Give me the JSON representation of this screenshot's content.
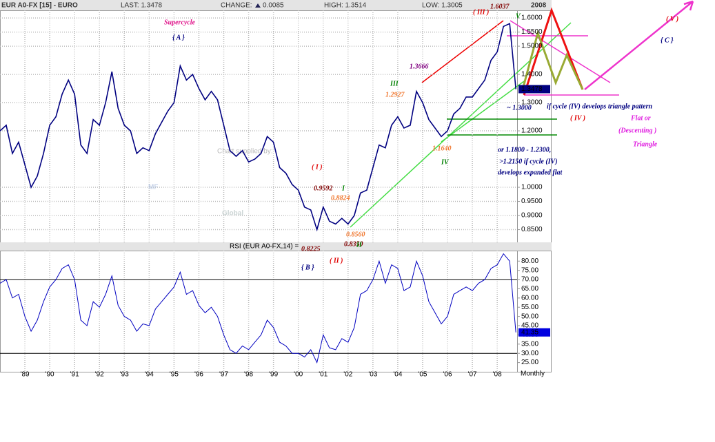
{
  "header": {
    "symbol": "EUR A0-FX [15] - EURO",
    "last": "LAST: 1.3478",
    "change_label": "CHANGE:",
    "change": "0.0085",
    "high": "HIGH: 1.3514",
    "low": "LOW: 1.3005",
    "date": "2008"
  },
  "footer": {
    "period": "Monthly"
  },
  "watermark": {
    "credit": "Chart supplied by:",
    "logo1": "MF",
    "logo2": "Global"
  },
  "chart_data": [
    {
      "type": "line",
      "color": "#000080",
      "grid": true,
      "xlim": [
        1988,
        2008.8
      ],
      "ylim": [
        0.805,
        1.627
      ],
      "x": [
        1988,
        1988.25,
        1988.5,
        1988.75,
        1989,
        1989.25,
        1989.5,
        1989.75,
        1990,
        1990.25,
        1990.5,
        1990.75,
        1991,
        1991.25,
        1991.5,
        1991.75,
        1992,
        1992.25,
        1992.5,
        1992.75,
        1993,
        1993.25,
        1993.5,
        1993.75,
        1994,
        1994.25,
        1994.5,
        1994.75,
        1995,
        1995.25,
        1995.5,
        1995.75,
        1996,
        1996.25,
        1996.5,
        1996.75,
        1997,
        1997.25,
        1997.5,
        1997.75,
        1998,
        1998.25,
        1998.5,
        1998.75,
        1999,
        1999.25,
        1999.5,
        1999.75,
        2000,
        2000.25,
        2000.5,
        2000.75,
        2001,
        2001.25,
        2001.5,
        2001.75,
        2002,
        2002.25,
        2002.5,
        2002.75,
        2003,
        2003.25,
        2003.5,
        2003.75,
        2004,
        2004.25,
        2004.5,
        2004.75,
        2005,
        2005.25,
        2005.5,
        2005.75,
        2006,
        2006.25,
        2006.5,
        2006.75,
        2007,
        2007.25,
        2007.5,
        2007.75,
        2008,
        2008.25,
        2008.5,
        2008.75
      ],
      "values": [
        1.2,
        1.22,
        1.12,
        1.16,
        1.08,
        1.0,
        1.04,
        1.12,
        1.22,
        1.25,
        1.33,
        1.38,
        1.33,
        1.15,
        1.12,
        1.24,
        1.22,
        1.3,
        1.41,
        1.28,
        1.22,
        1.2,
        1.12,
        1.14,
        1.13,
        1.19,
        1.23,
        1.27,
        1.3,
        1.43,
        1.38,
        1.4,
        1.35,
        1.31,
        1.34,
        1.31,
        1.22,
        1.13,
        1.11,
        1.13,
        1.09,
        1.1,
        1.12,
        1.18,
        1.16,
        1.07,
        1.05,
        1.01,
        0.99,
        0.93,
        0.92,
        0.85,
        0.93,
        0.88,
        0.87,
        0.89,
        0.87,
        0.9,
        0.98,
        0.99,
        1.07,
        1.15,
        1.14,
        1.22,
        1.25,
        1.21,
        1.22,
        1.34,
        1.3,
        1.24,
        1.21,
        1.18,
        1.2,
        1.26,
        1.28,
        1.32,
        1.32,
        1.35,
        1.38,
        1.45,
        1.48,
        1.57,
        1.58,
        1.3478
      ],
      "yticks": [
        {
          "value": 1.6,
          "label": "1.6000"
        },
        {
          "value": 1.55,
          "label": "1.5500"
        },
        {
          "value": 1.5,
          "label": "1.5000"
        },
        {
          "value": 1.4,
          "label": "1.4000"
        },
        {
          "value": 1.3,
          "label": "1.3000"
        },
        {
          "value": 1.2,
          "label": "1.2000"
        },
        {
          "value": 1.0,
          "label": "1.0000"
        },
        {
          "value": 0.95,
          "label": "0.9500"
        },
        {
          "value": 0.9,
          "label": "0.9000"
        },
        {
          "value": 0.85,
          "label": "0.8500"
        }
      ],
      "annotations": [
        {
          "text": "( III )",
          "color": "#e00000"
        },
        {
          "text": "1.6037",
          "color": "#800000"
        },
        {
          "text": "V",
          "color": "#008000"
        },
        {
          "text": "Supercycle",
          "color": "#e0138a"
        },
        {
          "text": "{ A }",
          "color": "#000080"
        },
        {
          "text": "1.3666",
          "color": "#800080"
        },
        {
          "text": "III",
          "color": "#008000"
        },
        {
          "text": "1.2927",
          "color": "#f07830"
        },
        {
          "text": "( I )",
          "color": "#e00000"
        },
        {
          "text": "0.9592",
          "color": "#800000"
        },
        {
          "text": "I",
          "color": "#008000"
        },
        {
          "text": "0.8824",
          "color": "#f07830"
        },
        {
          "text": "0.8560",
          "color": "#f07830"
        },
        {
          "text": "0.8350",
          "color": "#800000"
        },
        {
          "text": "0.8225",
          "color": "#800000"
        },
        {
          "text": "II",
          "color": "#008000"
        },
        {
          "text": "( II )",
          "color": "#e00000"
        },
        {
          "text": "{ B }",
          "color": "#000080"
        },
        {
          "text": "1.1640",
          "color": "#f07830"
        },
        {
          "text": "IV",
          "color": "#008000"
        },
        {
          "text": "~ 1.3000",
          "color": "#000080"
        },
        {
          "text": "if cycle (IV) develops triangle pattern",
          "color": "#000080"
        },
        {
          "text": "( IV )",
          "color": "#e00000"
        },
        {
          "text": "Flat or",
          "color": "#e020e0"
        },
        {
          "text": "(Descenting )",
          "color": "#e020e0"
        },
        {
          "text": "Triangle",
          "color": "#e020e0"
        },
        {
          "text": "or  1.1800 - 1.2300,",
          "color": "#000080"
        },
        {
          "text": ">1.2150  if cycle (IV)",
          "color": "#000080"
        },
        {
          "text": "develops expanded flat",
          "color": "#000080"
        },
        {
          "text": "( V )",
          "color": "#e00000"
        },
        {
          "text": "{ C }",
          "color": "#000080"
        }
      ]
    },
    {
      "type": "line",
      "title": "RSI (EUR A0-FX,14) =",
      "color": "#0000c0",
      "xlim": [
        1988,
        2008.8
      ],
      "ylim": [
        20,
        85.7
      ],
      "values": [
        68,
        70,
        60,
        62,
        50,
        42,
        48,
        58,
        66,
        70,
        76,
        78,
        70,
        48,
        45,
        58,
        55,
        62,
        72,
        56,
        50,
        48,
        42,
        46,
        45,
        54,
        58,
        62,
        66,
        74,
        62,
        64,
        56,
        52,
        55,
        50,
        40,
        32,
        30,
        34,
        32,
        36,
        40,
        48,
        44,
        36,
        34,
        30,
        30,
        28,
        32,
        25,
        40,
        33,
        32,
        38,
        36,
        44,
        62,
        64,
        70,
        80,
        68,
        78,
        76,
        64,
        66,
        80,
        72,
        58,
        52,
        46,
        50,
        62,
        64,
        66,
        64,
        68,
        70,
        76,
        78,
        84,
        80,
        41.35
      ],
      "hlines": [
        70,
        30
      ],
      "xticks": [
        {
          "value": 1989,
          "label": "'89"
        },
        {
          "value": 1990,
          "label": "'90"
        },
        {
          "value": 1991,
          "label": "'91"
        },
        {
          "value": 1992,
          "label": "'92"
        },
        {
          "value": 1993,
          "label": "'93"
        },
        {
          "value": 1994,
          "label": "'94"
        },
        {
          "value": 1995,
          "label": "'95"
        },
        {
          "value": 1996,
          "label": "'96"
        },
        {
          "value": 1997,
          "label": "'97"
        },
        {
          "value": 1998,
          "label": "'98"
        },
        {
          "value": 1999,
          "label": "'99"
        },
        {
          "value": 2000,
          "label": "'00"
        },
        {
          "value": 2001,
          "label": "'01"
        },
        {
          "value": 2002,
          "label": "'02"
        },
        {
          "value": 2003,
          "label": "'03"
        },
        {
          "value": 2004,
          "label": "'04"
        },
        {
          "value": 2005,
          "label": "'05"
        },
        {
          "value": 2006,
          "label": "'06"
        },
        {
          "value": 2007,
          "label": "'07"
        },
        {
          "value": 2008,
          "label": "'08"
        }
      ],
      "yticks": [
        {
          "value": 80,
          "label": "80.00"
        },
        {
          "value": 75,
          "label": "75.00"
        },
        {
          "value": 70,
          "label": "70.00"
        },
        {
          "value": 65,
          "label": "65.00"
        },
        {
          "value": 60,
          "label": "60.00"
        },
        {
          "value": 55,
          "label": "55.00"
        },
        {
          "value": 50,
          "label": "50.00"
        },
        {
          "value": 45,
          "label": "45.00"
        },
        {
          "value": 40,
          "label": "40.00"
        },
        {
          "value": 35,
          "label": "35.00"
        },
        {
          "value": 30,
          "label": "30.00"
        },
        {
          "value": 25,
          "label": "25.00"
        }
      ]
    }
  ]
}
